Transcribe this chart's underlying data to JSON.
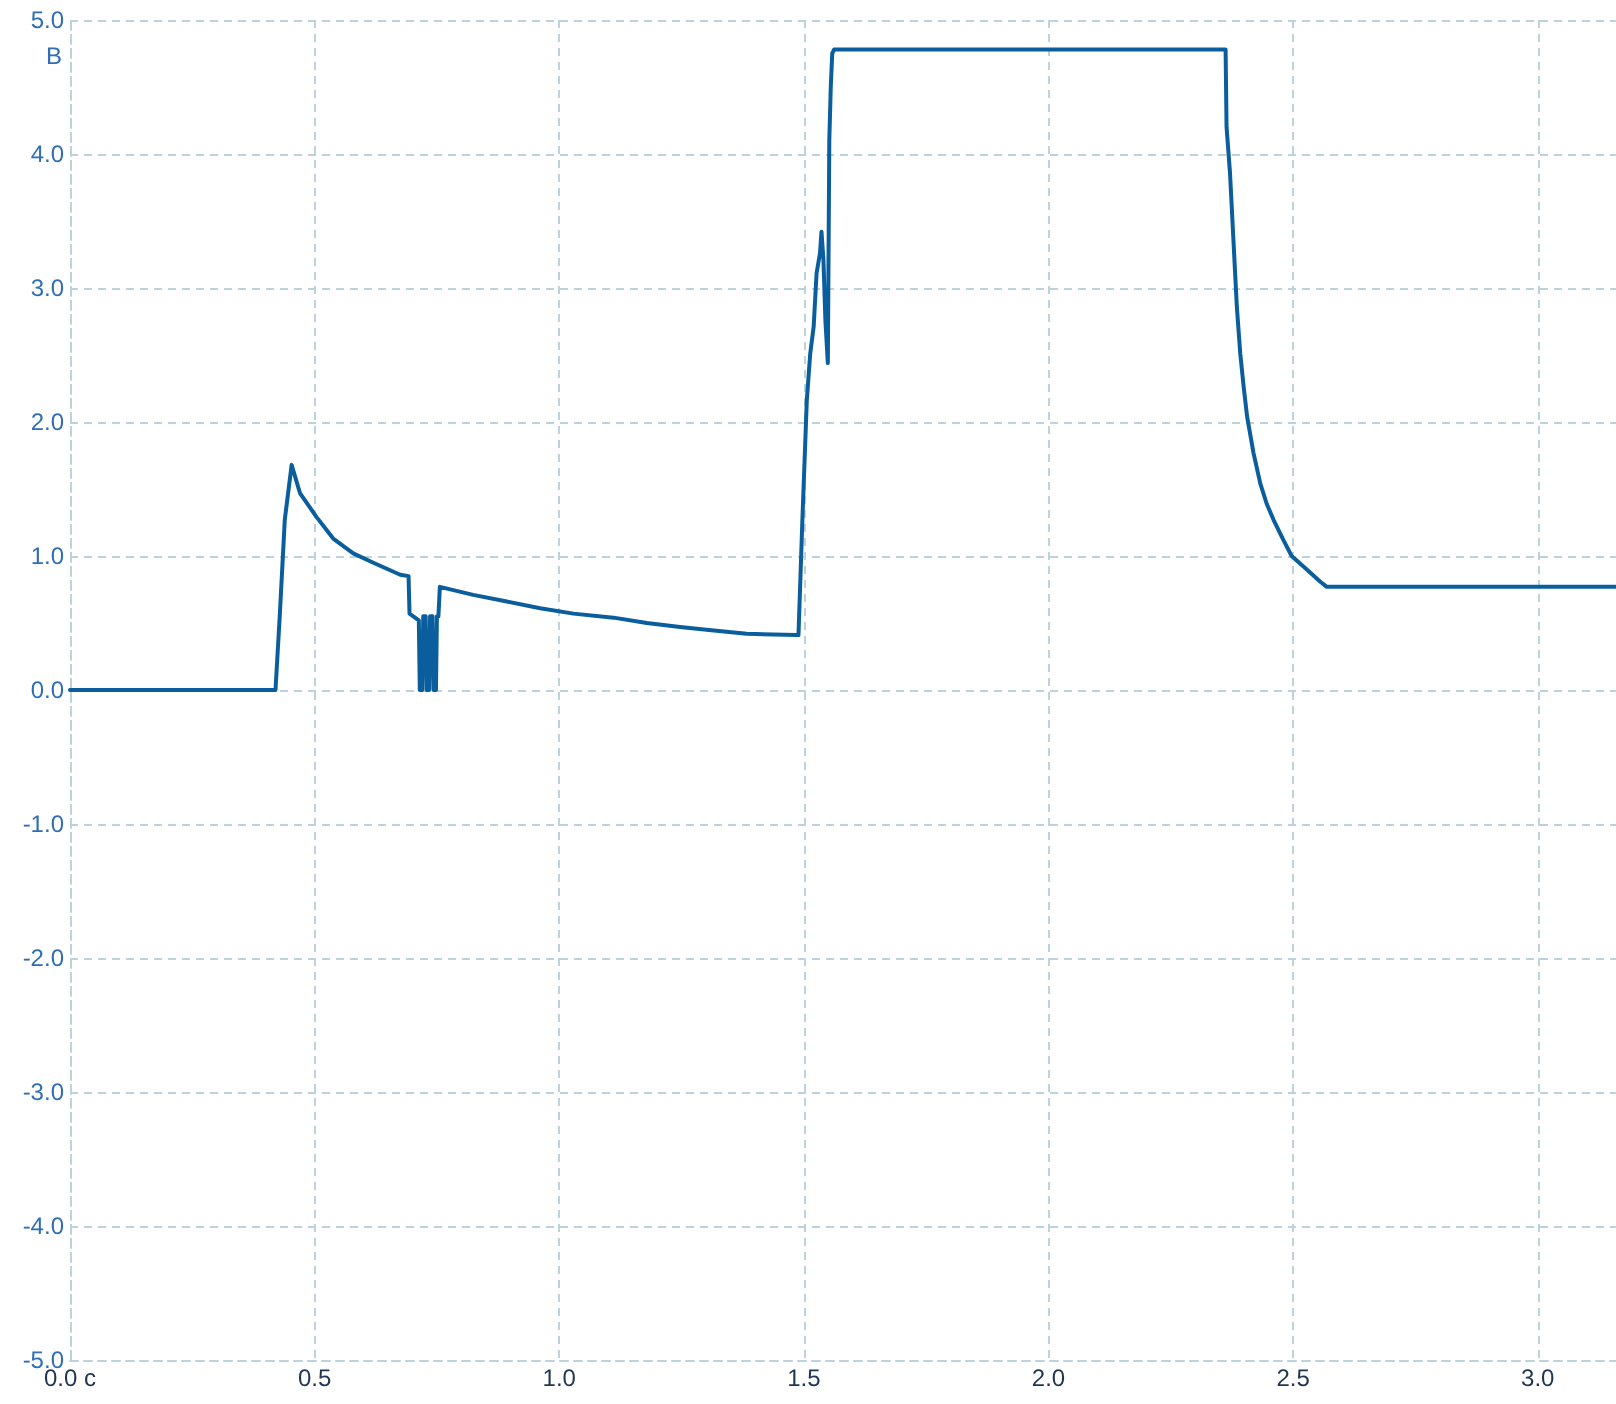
{
  "chart_data": {
    "type": "line",
    "ylabel": "В",
    "color": "#0b5e9e",
    "marker": "none",
    "grid": true,
    "xlim": [
      0,
      3.16
    ],
    "ylim": [
      -5,
      5
    ],
    "xticks": [
      {
        "value": 0,
        "label": "0.0 с"
      },
      0.5,
      {
        "value": 1,
        "label": "1.0"
      },
      1.5,
      {
        "value": 2,
        "label": "2.0"
      },
      2.5,
      {
        "value": 3,
        "label": "3.0"
      }
    ],
    "yticks": [
      {
        "value": -5,
        "label": "-5.0"
      },
      {
        "value": -4,
        "label": "-4.0"
      },
      {
        "value": -3,
        "label": "-3.0"
      },
      {
        "value": -2,
        "label": "-2.0"
      },
      {
        "value": -1,
        "label": "-1.0"
      },
      {
        "value": 0,
        "label": "0.0"
      },
      {
        "value": 1,
        "label": "1.0"
      },
      {
        "value": 2,
        "label": "2.0"
      },
      {
        "value": 3,
        "label": "3.0"
      },
      {
        "value": 4,
        "label": "4.0"
      },
      {
        "value": 5,
        "label": "5.0"
      }
    ],
    "x": [
      0,
      0.42,
      0.429,
      0.439,
      0.453,
      0.47,
      0.504,
      0.538,
      0.579,
      0.62,
      0.675,
      0.692,
      0.694,
      0.713,
      0.715,
      0.72,
      0.722,
      0.727,
      0.729,
      0.734,
      0.736,
      0.741,
      0.743,
      0.748,
      0.75,
      0.753,
      0.756,
      0.824,
      0.893,
      0.961,
      1.029,
      1.111,
      1.179,
      1.247,
      1.301,
      1.383,
      1.485,
      1.489,
      1.497,
      1.506,
      1.513,
      1.52,
      1.526,
      1.533,
      1.536,
      1.54,
      1.544,
      1.549,
      1.552,
      1.555,
      1.558,
      1.562,
      2.362,
      2.364,
      2.371,
      2.378,
      2.385,
      2.392,
      2.399,
      2.406,
      2.419,
      2.433,
      2.446,
      2.46,
      2.48,
      2.497,
      2.528,
      2.555,
      2.569,
      3.16
    ],
    "values": [
      0,
      0,
      0.57,
      1.27,
      1.68,
      1.47,
      1.29,
      1.13,
      1.02,
      0.95,
      0.86,
      0.85,
      0.57,
      0.52,
      0,
      0,
      0.55,
      0.55,
      0,
      0,
      0.55,
      0.55,
      0,
      0,
      0.55,
      0.55,
      0.77,
      0.71,
      0.66,
      0.61,
      0.57,
      0.54,
      0.5,
      0.47,
      0.45,
      0.42,
      0.41,
      0.41,
      1.27,
      2.16,
      2.51,
      2.71,
      3.11,
      3.26,
      3.42,
      3.21,
      2.76,
      2.44,
      4.1,
      4.5,
      4.75,
      4.78,
      4.78,
      4.2,
      3.86,
      3.36,
      2.86,
      2.51,
      2.26,
      2.04,
      1.77,
      1.54,
      1.39,
      1.27,
      1.12,
      1.0,
      0.9,
      0.81,
      0.77,
      0.77
    ]
  }
}
